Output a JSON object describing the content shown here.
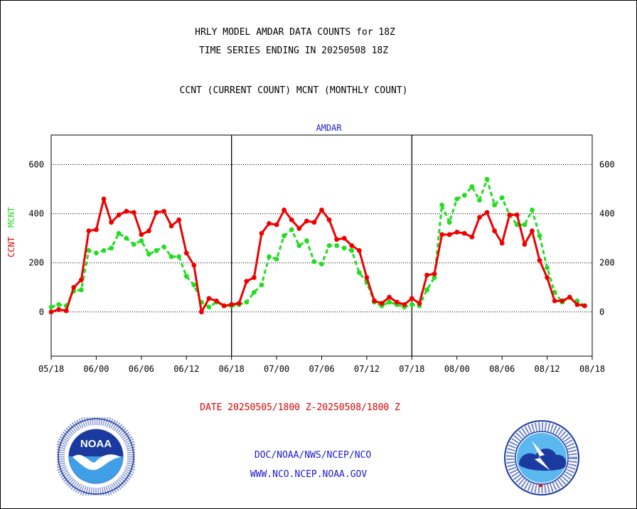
{
  "header": {
    "title_line1": "HRLY MODEL AMDAR DATA COUNTS for 18Z",
    "title_line2": "TIME SERIES ENDING IN 20250508 18Z",
    "subtitle": "CCNT (CURRENT COUNT) MCNT (MONTHLY COUNT)"
  },
  "footer": {
    "date_range": "DATE 20250505/1800 Z-20250508/1800 Z",
    "org_path": "DOC/NOAA/NWS/NCEP/NCO",
    "website": "WWW.NCO.NCEP.NOAA.GOV"
  },
  "logos": {
    "noaa_text": "NOAA",
    "noaa_ring_text": "NATIONAL OCEANIC AND ATMOSPHERIC ADMINISTRATION · U.S. DEPARTMENT OF COMMERCE",
    "nws_ring_text": "NATIONAL WEATHER SERVICE"
  },
  "colors": {
    "ccnt": "#ee0000",
    "mcnt": "#22dd22",
    "label_blue": "#1a1acc",
    "date_red": "#dd0000",
    "grid": "#000000"
  },
  "chart_data": {
    "type": "line",
    "title": "AMDAR",
    "ylabel_ccnt": "CCNT",
    "ylabel_mcnt": "MCNT",
    "ylim": [
      -180,
      720
    ],
    "yticks": [
      0,
      200,
      400,
      600
    ],
    "grid": true,
    "xlim": [
      0,
      72
    ],
    "xticks": [
      0,
      6,
      12,
      18,
      24,
      30,
      36,
      42,
      48,
      54,
      60,
      66,
      72
    ],
    "xtick_labels": [
      "05/18",
      "06/00",
      "06/06",
      "06/12",
      "06/18",
      "07/00",
      "07/06",
      "07/12",
      "07/18",
      "08/00",
      "08/06",
      "08/12",
      "08/18"
    ],
    "day_dividers": [
      24,
      48
    ],
    "series": [
      {
        "name": "CCNT",
        "color": "#ee0000",
        "style": "solid",
        "values": [
          0,
          10,
          5,
          100,
          130,
          330,
          335,
          460,
          365,
          395,
          410,
          405,
          315,
          330,
          405,
          410,
          350,
          375,
          240,
          190,
          0,
          55,
          45,
          25,
          30,
          35,
          125,
          140,
          320,
          360,
          355,
          415,
          375,
          340,
          370,
          365,
          415,
          375,
          295,
          300,
          270,
          250,
          140,
          45,
          35,
          60,
          40,
          30,
          55,
          35,
          150,
          155,
          315,
          315,
          325,
          320,
          305,
          385,
          405,
          330,
          280,
          395,
          395,
          275,
          330,
          210,
          140,
          45,
          45,
          60,
          30,
          25
        ]
      },
      {
        "name": "MCNT",
        "color": "#22dd22",
        "style": "dashed",
        "values": [
          20,
          30,
          25,
          85,
          90,
          250,
          240,
          250,
          260,
          320,
          300,
          275,
          290,
          235,
          250,
          265,
          225,
          225,
          145,
          110,
          40,
          20,
          40,
          25,
          25,
          30,
          40,
          80,
          110,
          225,
          215,
          310,
          335,
          270,
          290,
          205,
          195,
          270,
          270,
          260,
          250,
          160,
          120,
          40,
          25,
          40,
          30,
          20,
          30,
          25,
          90,
          140,
          435,
          365,
          460,
          475,
          510,
          455,
          540,
          435,
          465,
          395,
          355,
          355,
          415,
          310,
          180,
          80,
          40,
          60,
          45,
          25
        ]
      }
    ]
  }
}
